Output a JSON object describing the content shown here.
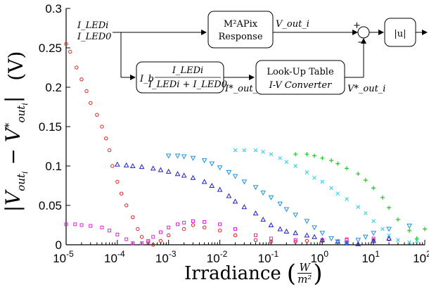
{
  "chart_data": {
    "type": "scatter",
    "title": "",
    "xlabel": "Irradiance (W/m²)",
    "ylabel": "|V_out_i − V*_out_i|   (V)",
    "x_scale": "log",
    "xlim": [
      1e-05,
      100
    ],
    "ylim": [
      0,
      0.3
    ],
    "x_ticks": [
      "10^-5",
      "10^-4",
      "10^-3",
      "10^-2",
      "10^-1",
      "10^0",
      "10^1",
      "10^2"
    ],
    "y_ticks": [
      "0",
      "0.05",
      "0.1",
      "0.15",
      "0.2",
      "0.25",
      "0.3"
    ],
    "grid": false,
    "legend": "none",
    "series": [
      {
        "color": "#e0201c",
        "marker": "circle",
        "x": [
          1e-05,
          1.2e-05,
          1.6e-05,
          2e-05,
          2.5e-05,
          3e-05,
          4e-05,
          5e-05,
          6e-05,
          7e-05,
          8e-05,
          0.0001,
          0.00012,
          0.00015,
          0.0002,
          0.00025,
          0.0003,
          0.0004,
          0.0005,
          0.0007,
          0.001,
          0.002,
          0.003,
          0.005,
          0.01,
          0.02,
          0.05,
          0.1,
          0.3,
          0.5,
          1,
          3,
          10,
          20
        ],
        "y": [
          0.255,
          0.245,
          0.225,
          0.21,
          0.195,
          0.18,
          0.165,
          0.15,
          0.135,
          0.12,
          0.1,
          0.08,
          0.065,
          0.05,
          0.035,
          0.02,
          0.01,
          0.003,
          0.0,
          0.005,
          0.012,
          0.02,
          0.025,
          0.022,
          0.018,
          0.012,
          0.006,
          0.004,
          0.004,
          0.005,
          0.005,
          0.006,
          0.006,
          0.007
        ]
      },
      {
        "color": "#e020d8",
        "marker": "square",
        "x": [
          1e-05,
          1.5e-05,
          2e-05,
          3e-05,
          5e-05,
          7e-05,
          0.0001,
          0.00015,
          0.0002,
          0.0003,
          0.0004,
          0.0005,
          0.0007,
          0.001,
          0.0015,
          0.002,
          0.003,
          0.005,
          0.01,
          0.02,
          0.05,
          0.1,
          0.3,
          1,
          3,
          10
        ],
        "y": [
          0.026,
          0.026,
          0.025,
          0.024,
          0.022,
          0.018,
          0.013,
          0.007,
          0.002,
          0.002,
          0.005,
          0.01,
          0.016,
          0.022,
          0.026,
          0.028,
          0.03,
          0.029,
          0.026,
          0.02,
          0.012,
          0.008,
          0.006,
          0.006,
          0.007,
          0.008
        ]
      },
      {
        "color": "#2020c8",
        "marker": "triangle-up",
        "x": [
          0.0001,
          0.00015,
          0.0002,
          0.0003,
          0.0005,
          0.0007,
          0.001,
          0.0015,
          0.002,
          0.003,
          0.005,
          0.007,
          0.01,
          0.015,
          0.02,
          0.03,
          0.05,
          0.07,
          0.1,
          0.15,
          0.2,
          0.3,
          0.5,
          0.7,
          1,
          2,
          3,
          5,
          10,
          20
        ],
        "y": [
          0.102,
          0.101,
          0.1,
          0.099,
          0.097,
          0.095,
          0.093,
          0.09,
          0.088,
          0.085,
          0.08,
          0.075,
          0.07,
          0.062,
          0.055,
          0.048,
          0.04,
          0.032,
          0.025,
          0.02,
          0.017,
          0.015,
          0.012,
          0.01,
          0.006,
          0.004,
          0.002,
          0.001,
          0.005,
          0.008
        ]
      },
      {
        "color": "#2090e0",
        "marker": "triangle-down",
        "x": [
          0.001,
          0.0015,
          0.002,
          0.003,
          0.005,
          0.007,
          0.01,
          0.015,
          0.02,
          0.03,
          0.05,
          0.07,
          0.1,
          0.15,
          0.2,
          0.3,
          0.5,
          0.7,
          1,
          1.5,
          2,
          3,
          5,
          7,
          10,
          20,
          50
        ],
        "y": [
          0.113,
          0.113,
          0.112,
          0.11,
          0.107,
          0.103,
          0.098,
          0.092,
          0.087,
          0.08,
          0.073,
          0.066,
          0.06,
          0.052,
          0.045,
          0.038,
          0.03,
          0.022,
          0.015,
          0.008,
          0.004,
          0.002,
          0.006,
          0.01,
          0.015,
          0.02,
          0.024
        ]
      },
      {
        "color": "#20d0e8",
        "marker": "x",
        "x": [
          0.02,
          0.03,
          0.05,
          0.07,
          0.1,
          0.15,
          0.2,
          0.3,
          0.5,
          0.7,
          1,
          1.5,
          2,
          3,
          5,
          7,
          10,
          15,
          20,
          30,
          50,
          70
        ],
        "y": [
          0.12,
          0.12,
          0.12,
          0.118,
          0.115,
          0.11,
          0.105,
          0.1,
          0.092,
          0.085,
          0.08,
          0.072,
          0.065,
          0.058,
          0.048,
          0.04,
          0.03,
          0.02,
          0.012,
          0.006,
          0.003,
          0.005
        ]
      },
      {
        "color": "#20c820",
        "marker": "plus",
        "x": [
          0.3,
          0.5,
          0.7,
          1,
          1.5,
          2,
          3,
          5,
          7,
          10,
          15,
          20,
          30,
          50,
          70,
          100
        ],
        "y": [
          0.115,
          0.115,
          0.113,
          0.11,
          0.107,
          0.103,
          0.097,
          0.09,
          0.082,
          0.072,
          0.06,
          0.047,
          0.032,
          0.018,
          0.008,
          0.02
        ]
      }
    ]
  },
  "diagram": {
    "input_top": "I_LEDi",
    "input_bottom": "I_LED0",
    "response_line1": "M²APix",
    "response_line2": "Response",
    "vout": "V_out_i",
    "ratio_prefix": "I_b",
    "ratio_numerator": "I_LEDi",
    "ratio_denominator": "I_LEDi + I_LED0",
    "iout": "I*_out_i",
    "lut_line1": "Look-Up Table",
    "lut_line2": "I-V Converter",
    "vout_star": "V*_out_i",
    "plus_sign": "+",
    "minus_sign": "−",
    "abs_block": "|u|"
  },
  "labels": {
    "xlabel_word": "Irradiance",
    "xlabel_num": "W",
    "xlabel_den": "m²",
    "ylabel_unit": "(V)"
  }
}
